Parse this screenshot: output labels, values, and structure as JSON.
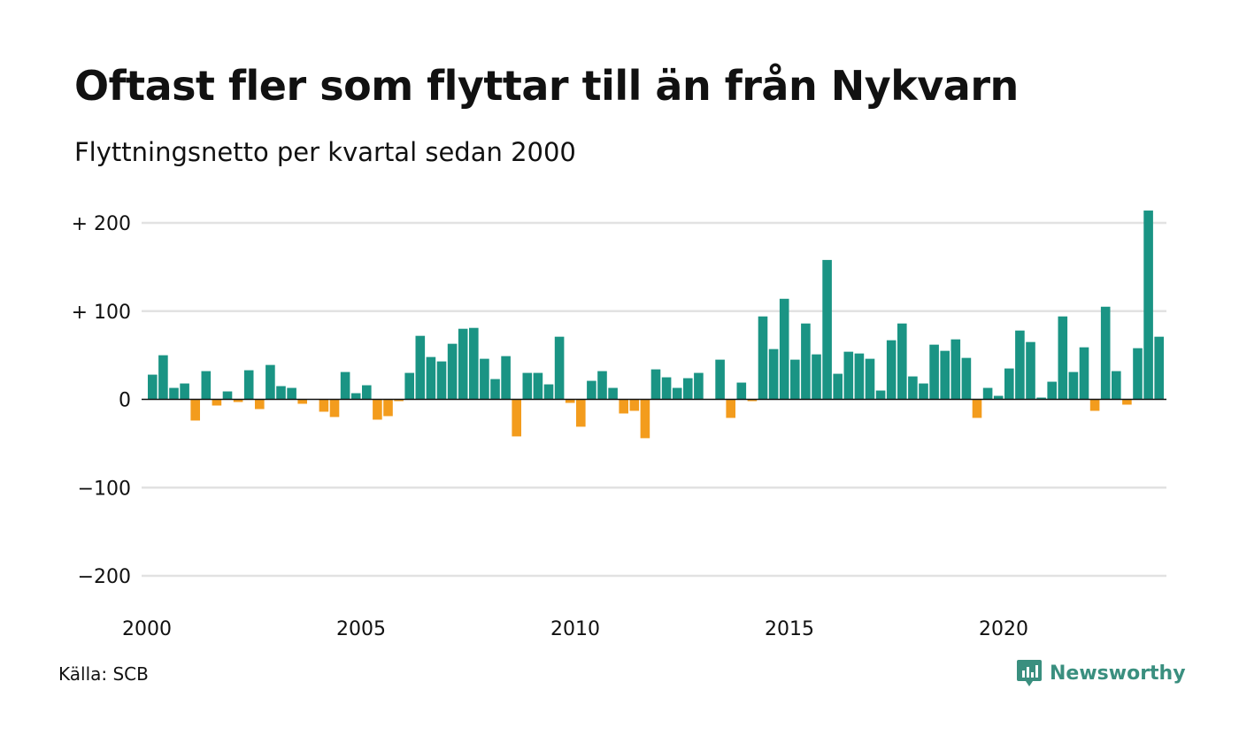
{
  "title": "Oftast fler som flyttar till än från Nykvarn",
  "subtitle": "Flyttningsnetto per kvartal sedan 2000",
  "source": "Källa: SCB",
  "brand": {
    "name": "Newsworthy",
    "icon": "newsworthy-logo-icon",
    "color": "#3a8f7f"
  },
  "chart_data": {
    "type": "bar",
    "x_start_year": 2000,
    "quarters_per_year": 4,
    "x_tick_labels": [
      "2000",
      "2005",
      "2010",
      "2015",
      "2020"
    ],
    "y_ticks": [
      {
        "value": 200,
        "label": "+ 200"
      },
      {
        "value": 100,
        "label": "+ 100"
      },
      {
        "value": 0,
        "label": "0"
      },
      {
        "value": -100,
        "label": "−100"
      },
      {
        "value": -200,
        "label": "−200"
      }
    ],
    "ylim": [
      -200,
      200
    ],
    "grid": true,
    "colors": {
      "positive": "#1a9484",
      "negative": "#f39c1d"
    },
    "values": [
      28,
      50,
      13,
      18,
      -24,
      32,
      -7,
      9,
      -3,
      33,
      -11,
      39,
      15,
      13,
      -5,
      0,
      -14,
      -20,
      31,
      7,
      16,
      -23,
      -19,
      -2,
      30,
      72,
      48,
      43,
      63,
      80,
      81,
      46,
      23,
      49,
      -42,
      30,
      30,
      17,
      71,
      -4,
      -31,
      21,
      32,
      13,
      -16,
      -13,
      -44,
      34,
      25,
      13,
      24,
      30,
      0,
      45,
      -21,
      19,
      -2,
      94,
      57,
      114,
      45,
      86,
      51,
      158,
      29,
      54,
      52,
      46,
      10,
      67,
      86,
      26,
      18,
      62,
      55,
      68,
      47,
      -21,
      13,
      4,
      35,
      78,
      65,
      2,
      20,
      94,
      31,
      59,
      -13,
      105,
      32,
      -6,
      58,
      214,
      71
    ]
  }
}
